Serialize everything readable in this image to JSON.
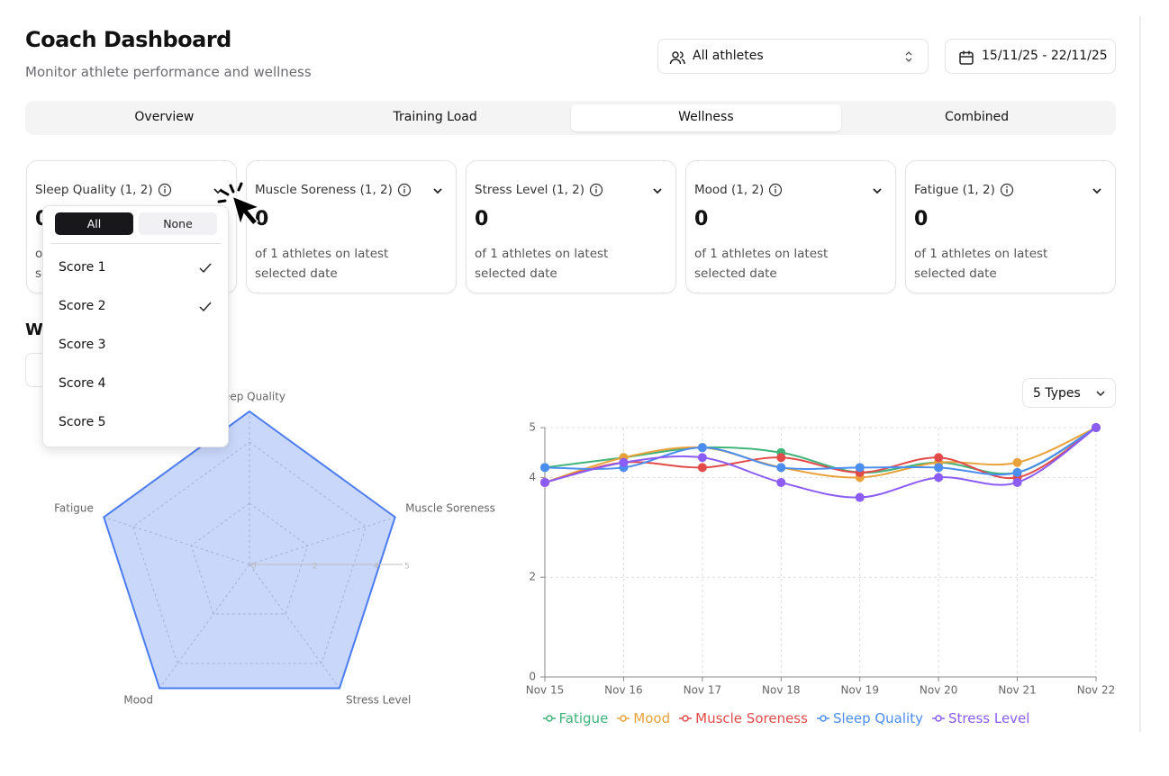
{
  "header": {
    "title": "Coach Dashboard",
    "subtitle": "Monitor athlete performance and wellness"
  },
  "filters": {
    "athletes": "All athletes",
    "date_range": "15/11/25 - 22/11/25"
  },
  "tabs": {
    "items": [
      "Overview",
      "Training Load",
      "Wellness",
      "Combined"
    ],
    "active": "Wellness"
  },
  "cards": [
    {
      "label": "Sleep Quality (1, 2)",
      "value": 0,
      "note": "of 1 athletes on latest selected date"
    },
    {
      "label": "Muscle Soreness (1, 2)",
      "value": 0,
      "note": "of 1 athletes on latest selected date"
    },
    {
      "label": "Stress Level (1, 2)",
      "value": 0,
      "note": "of 1 athletes on latest selected date"
    },
    {
      "label": "Mood (1, 2)",
      "value": 0,
      "note": "of 1 athletes on latest selected date"
    },
    {
      "label": "Fatigue (1, 2)",
      "value": 0,
      "note": "of 1 athletes on latest selected date"
    }
  ],
  "dropdown": {
    "buttons": [
      "All",
      "None"
    ],
    "options": [
      {
        "label": "Score 1",
        "checked": true
      },
      {
        "label": "Score 2",
        "checked": true
      },
      {
        "label": "Score 3",
        "checked": false
      },
      {
        "label": "Score 4",
        "checked": false
      },
      {
        "label": "Score 5",
        "checked": false
      }
    ]
  },
  "section_title": "W",
  "types_button": "5 Types",
  "chart_data": [
    {
      "type": "radar",
      "categories": [
        "Sleep Quality",
        "Muscle Soreness",
        "Stress Level",
        "Mood",
        "Fatigue"
      ],
      "values": [
        5,
        5,
        5,
        5,
        5
      ],
      "color": "#4b7cf0",
      "rlim": [
        0,
        5
      ],
      "rticks": [
        0,
        2,
        4,
        5
      ],
      "grid": true
    },
    {
      "type": "line",
      "categories": [
        "Nov 15",
        "Nov 16",
        "Nov 17",
        "Nov 18",
        "Nov 19",
        "Nov 20",
        "Nov 21",
        "Nov 22"
      ],
      "ylim": [
        0,
        5
      ],
      "yticks": [
        0,
        2,
        4,
        5
      ],
      "grid": true,
      "series": [
        {
          "name": "Fatigue",
          "color": "#3fb37a",
          "values": [
            4.2,
            4.4,
            4.6,
            4.5,
            4.1,
            4.3,
            4.1,
            5
          ]
        },
        {
          "name": "Mood",
          "color": "#e9a23b",
          "values": [
            3.9,
            4.4,
            4.6,
            4.2,
            4.0,
            4.3,
            4.3,
            5
          ]
        },
        {
          "name": "Muscle Soreness",
          "color": "#e34b4b",
          "values": [
            3.9,
            4.3,
            4.2,
            4.4,
            4.1,
            4.4,
            4.0,
            5
          ]
        },
        {
          "name": "Sleep Quality",
          "color": "#4b8ef0",
          "values": [
            4.2,
            4.2,
            4.6,
            4.2,
            4.2,
            4.2,
            4.1,
            5
          ]
        },
        {
          "name": "Stress Level",
          "color": "#8b5cf6",
          "values": [
            3.9,
            4.3,
            4.4,
            3.9,
            3.6,
            4.0,
            3.9,
            5
          ]
        }
      ]
    }
  ]
}
